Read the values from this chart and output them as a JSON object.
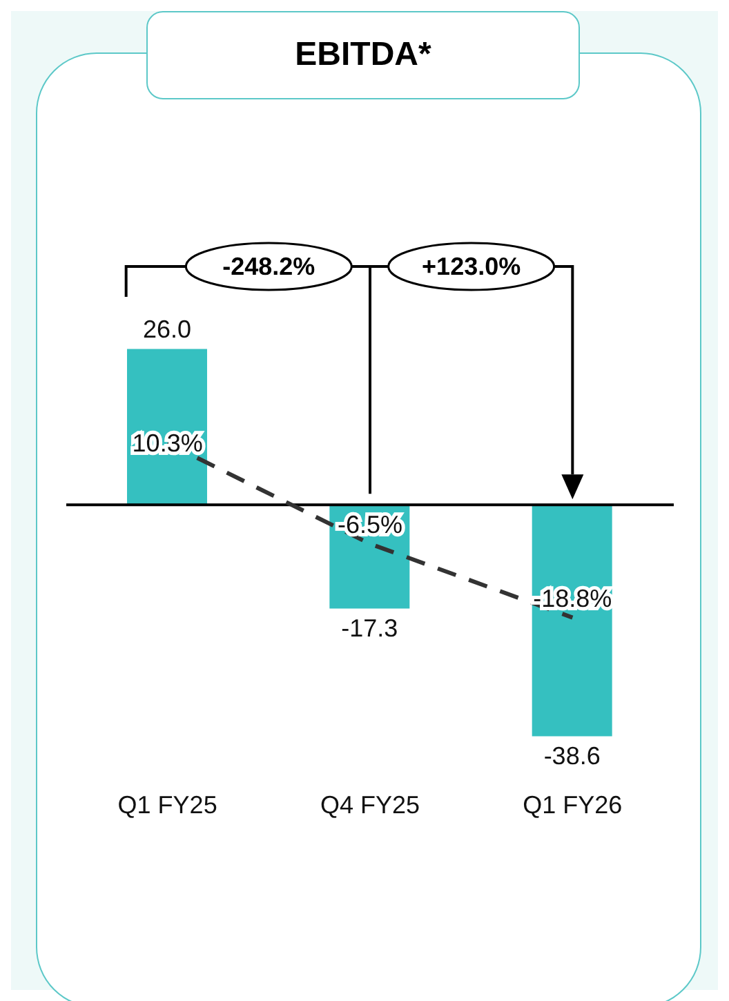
{
  "chart_data": {
    "type": "bar",
    "title": "EBITDA*",
    "categories": [
      "Q1 FY25",
      "Q4 FY25",
      "Q1 FY26"
    ],
    "series": [
      {
        "color": "#35c0c0",
        "values": [
          26.0,
          -17.3,
          -38.6
        ],
        "value_labels": [
          "26.0",
          "-17.3",
          "-38.6"
        ]
      },
      {
        "type": "line",
        "color": "#333333",
        "values": [
          10.3,
          -6.5,
          -18.8
        ],
        "value_labels": [
          "10.3%",
          "-6.5%",
          "-18.8%"
        ],
        "line_style": "dashed",
        "marker": "none"
      }
    ],
    "ref_lines": [
      {
        "axis": "y",
        "value": 0,
        "color": "#000000"
      }
    ],
    "annotations": [
      "-248.2%",
      "+123.0%"
    ],
    "grid": false,
    "legend": false
  }
}
